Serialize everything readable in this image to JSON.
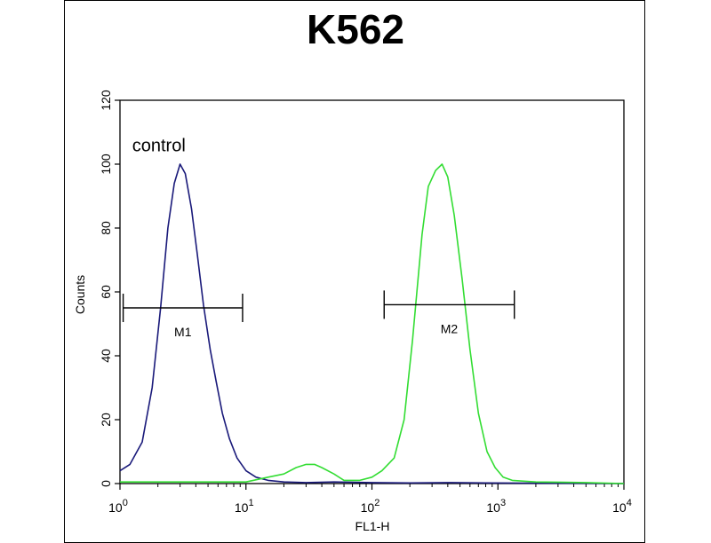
{
  "chart_data": {
    "type": "line",
    "title": "K562",
    "xlabel": "FL1-H",
    "ylabel": "Counts",
    "x_scale": "log",
    "xlim": [
      1,
      10000
    ],
    "ylim": [
      0,
      120
    ],
    "grid": false,
    "x_ticks": [
      {
        "value": 1,
        "base": "10",
        "exp": "0"
      },
      {
        "value": 10,
        "base": "10",
        "exp": "1"
      },
      {
        "value": 100,
        "base": "10",
        "exp": "2"
      },
      {
        "value": 1000,
        "base": "10",
        "exp": "3"
      },
      {
        "value": 10000,
        "base": "10",
        "exp": "4"
      }
    ],
    "y_ticks": [
      0,
      20,
      40,
      60,
      80,
      100,
      120
    ],
    "annotations": [
      {
        "text": "control",
        "x": 1.25,
        "y": 104
      }
    ],
    "gates": [
      {
        "name": "M1",
        "x_start": 1.06,
        "x_end": 9.4,
        "y": 55
      },
      {
        "name": "M2",
        "x_start": 125,
        "x_end": 1350,
        "y": 56
      }
    ],
    "series": [
      {
        "color": "#1a1a7a",
        "x": [
          1.0,
          1.2,
          1.5,
          1.8,
          2.1,
          2.4,
          2.7,
          3.0,
          3.3,
          3.7,
          4.1,
          4.6,
          5.2,
          5.8,
          6.5,
          7.4,
          8.5,
          10,
          12,
          15,
          20,
          30,
          50,
          100,
          200,
          400,
          800,
          2000,
          10000
        ],
        "y": [
          4,
          6,
          13,
          30,
          55,
          80,
          94,
          100,
          97,
          86,
          72,
          56,
          42,
          32,
          22,
          14,
          8,
          4,
          2,
          1,
          0.5,
          0.3,
          0.5,
          0.3,
          0.2,
          0.3,
          0.2,
          0.1,
          0
        ]
      },
      {
        "color": "#33dd33",
        "x": [
          1.0,
          2,
          5,
          10,
          15,
          20,
          25,
          30,
          35,
          40,
          50,
          60,
          80,
          100,
          120,
          150,
          180,
          210,
          250,
          280,
          320,
          360,
          400,
          450,
          520,
          600,
          700,
          820,
          950,
          1100,
          1300,
          2000,
          5000,
          10000
        ],
        "y": [
          0.5,
          0.5,
          0.5,
          0.5,
          2,
          3,
          5,
          6,
          6,
          5,
          3,
          1,
          1,
          2,
          4,
          8,
          20,
          45,
          78,
          93,
          98,
          100,
          96,
          84,
          64,
          42,
          22,
          10,
          5,
          2,
          1,
          0.5,
          0.3,
          0
        ]
      }
    ]
  }
}
